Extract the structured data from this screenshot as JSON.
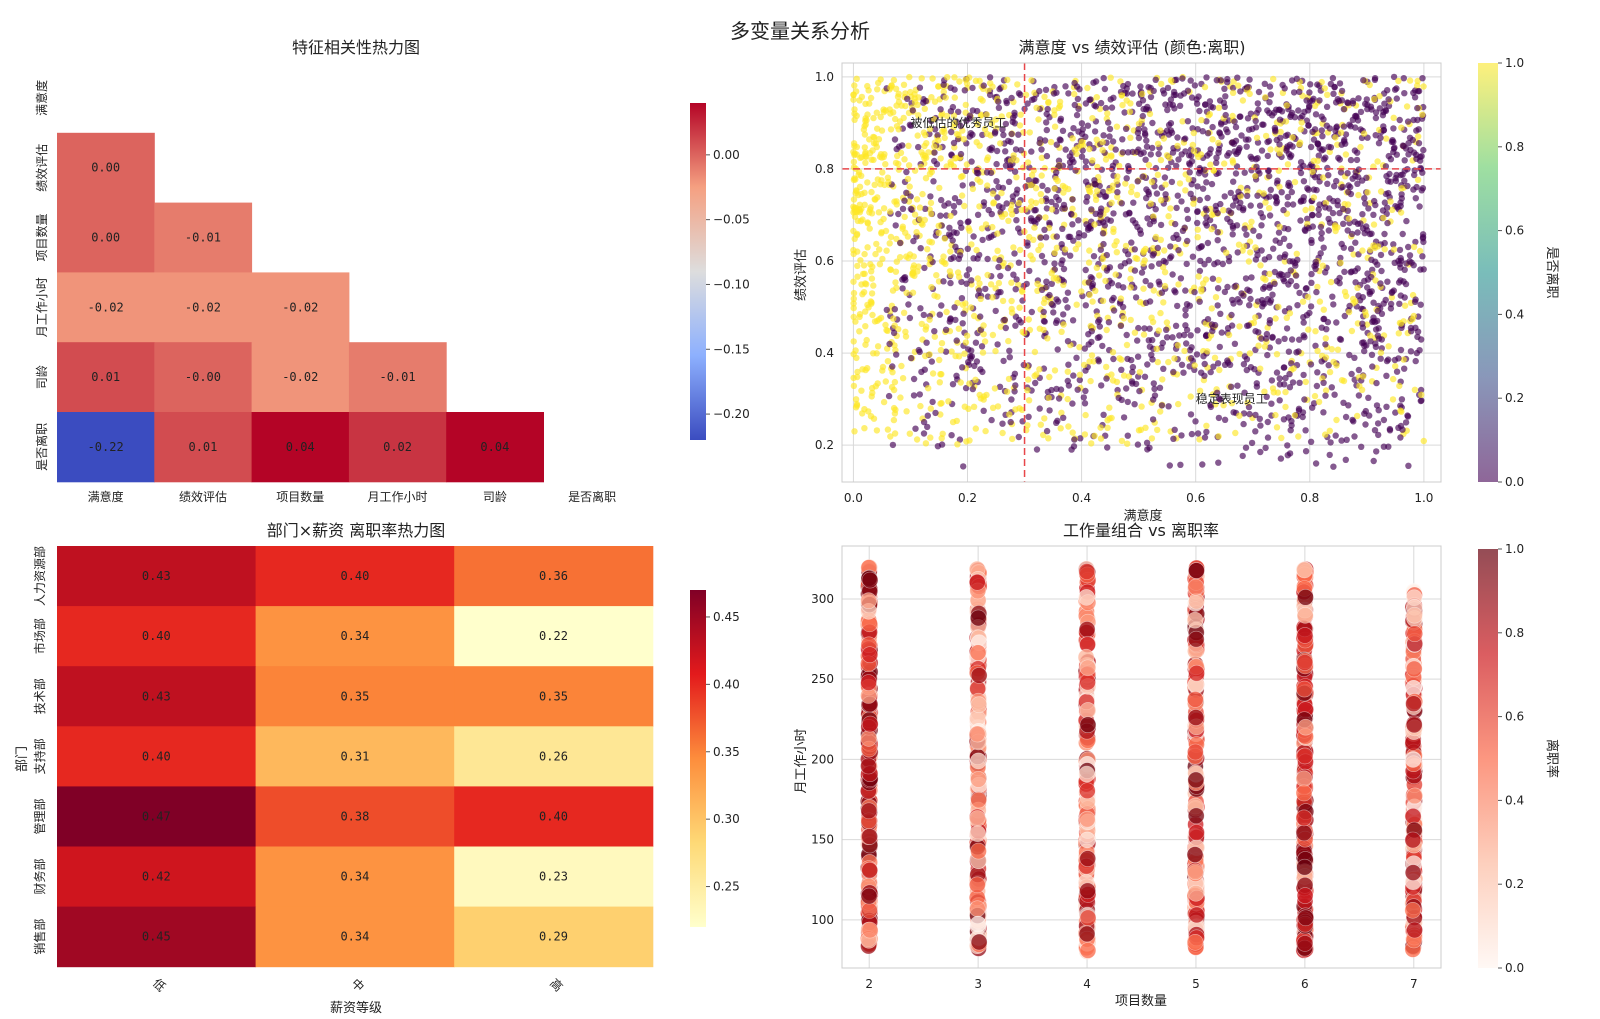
{
  "figure": {
    "suptitle": "多变量关系分析"
  },
  "chart_data": [
    {
      "type": "heatmap",
      "title": "特征相关性热力图",
      "labels": [
        "满意度",
        "绩效评估",
        "项目数量",
        "月工作小时",
        "司龄",
        "是否离职"
      ],
      "matrix": [
        [
          null,
          null,
          null,
          null,
          null,
          null
        ],
        [
          0.0,
          null,
          null,
          null,
          null,
          null
        ],
        [
          0.0,
          -0.01,
          null,
          null,
          null,
          null
        ],
        [
          -0.02,
          -0.02,
          -0.02,
          null,
          null,
          null
        ],
        [
          0.01,
          -0.0,
          -0.02,
          -0.01,
          null,
          null
        ],
        [
          -0.22,
          0.01,
          0.04,
          0.02,
          0.04,
          null
        ]
      ],
      "cell_labels": [
        [
          null,
          null,
          null,
          null,
          null,
          null
        ],
        [
          "0.00",
          null,
          null,
          null,
          null,
          null
        ],
        [
          "0.00",
          "-0.01",
          null,
          null,
          null,
          null
        ],
        [
          "-0.02",
          "-0.02",
          "-0.02",
          null,
          null,
          null
        ],
        [
          "0.01",
          "-0.00",
          "-0.02",
          "-0.01",
          null,
          null
        ],
        [
          "-0.22",
          "0.01",
          "0.04",
          "0.02",
          "0.04",
          null
        ]
      ],
      "colormap": "coolwarm",
      "vmin": -0.22,
      "vmax": 0.04,
      "colorbar_ticks": [
        0.0,
        -0.05,
        -0.1,
        -0.15,
        -0.2
      ],
      "colorbar_tick_labels": [
        "0.00",
        "−0.05",
        "−0.10",
        "−0.15",
        "−0.20"
      ]
    },
    {
      "type": "scatter",
      "title": "满意度 vs 绩效评估 (颜色:离职)",
      "xlabel": "满意度",
      "ylabel": "绩效评估",
      "xlim": [
        -0.02,
        1.03
      ],
      "ylim": [
        0.12,
        1.03
      ],
      "xticks": [
        0.0,
        0.2,
        0.4,
        0.6,
        0.8,
        1.0
      ],
      "xtick_labels": [
        "0.0",
        "0.2",
        "0.4",
        "0.6",
        "0.8",
        "1.0"
      ],
      "yticks": [
        0.2,
        0.4,
        0.6,
        0.8,
        1.0
      ],
      "ytick_labels": [
        "0.2",
        "0.4",
        "0.6",
        "0.8",
        "1.0"
      ],
      "grid": true,
      "colormap": "viridis",
      "color_meaning": "是否离职 (0 = 留任, 1 = 离职)",
      "colorbar_label": "是否离职",
      "colorbar_ticks": [
        0.0,
        0.2,
        0.4,
        0.6,
        0.8,
        1.0
      ],
      "colorbar_tick_labels": [
        "0.0",
        "0.2",
        "0.4",
        "0.6",
        "0.8",
        "1.0"
      ],
      "reference_lines": [
        {
          "orientation": "vertical",
          "value": 0.3,
          "color": "#e8464a"
        },
        {
          "orientation": "horizontal",
          "value": 0.8,
          "color": "#e8464a"
        }
      ],
      "annotations": [
        {
          "text": "被低估的优秀员工",
          "x": 0.1,
          "y": 0.9,
          "color": "#ff0000"
        },
        {
          "text": "稳定表现员工",
          "x": 0.6,
          "y": 0.3,
          "color": "#008000"
        }
      ],
      "distribution": {
        "stayed": {
          "x_range": [
            0.05,
            1.0
          ],
          "y_range": [
            0.15,
            1.0
          ],
          "n": 2000
        },
        "left": {
          "x_range": [
            0.0,
            1.0
          ],
          "y_range": [
            0.2,
            1.0
          ],
          "n": 1400
        }
      }
    },
    {
      "type": "heatmap",
      "title": "部门×薪资 离职率热力图",
      "xlabel": "薪资等级",
      "ylabel": "部门",
      "x_categories": [
        "低",
        "中",
        "高"
      ],
      "y_categories": [
        "人力资源部",
        "市场部",
        "技术部",
        "支持部",
        "管理部",
        "财务部",
        "销售部"
      ],
      "values": [
        [
          0.43,
          0.4,
          0.36
        ],
        [
          0.4,
          0.34,
          0.22
        ],
        [
          0.43,
          0.35,
          0.35
        ],
        [
          0.4,
          0.31,
          0.26
        ],
        [
          0.47,
          0.38,
          0.4
        ],
        [
          0.42,
          0.34,
          0.23
        ],
        [
          0.45,
          0.34,
          0.29
        ]
      ],
      "cell_labels": [
        [
          "0.43",
          "0.40",
          "0.36"
        ],
        [
          "0.40",
          "0.34",
          "0.22"
        ],
        [
          "0.43",
          "0.35",
          "0.35"
        ],
        [
          "0.40",
          "0.31",
          "0.26"
        ],
        [
          "0.47",
          "0.38",
          "0.40"
        ],
        [
          "0.42",
          "0.34",
          "0.23"
        ],
        [
          "0.45",
          "0.34",
          "0.29"
        ]
      ],
      "colormap": "YlOrRd",
      "vmin": 0.22,
      "vmax": 0.47,
      "colorbar_ticks": [
        0.25,
        0.3,
        0.35,
        0.4,
        0.45
      ],
      "colorbar_tick_labels": [
        "0.25",
        "0.30",
        "0.35",
        "0.40",
        "0.45"
      ]
    },
    {
      "type": "scatter",
      "title": "工作量组合 vs 离职率",
      "xlabel": "项目数量",
      "ylabel": "月工作小时",
      "xlim": [
        1.75,
        7.25
      ],
      "ylim": [
        70,
        333
      ],
      "xticks": [
        2,
        3,
        4,
        5,
        6,
        7
      ],
      "xtick_labels": [
        "2",
        "3",
        "4",
        "5",
        "6",
        "7"
      ],
      "yticks": [
        100,
        150,
        200,
        250,
        300
      ],
      "ytick_labels": [
        "100",
        "150",
        "200",
        "250",
        "300"
      ],
      "grid": true,
      "colormap": "Reds",
      "colorbar_label": "离职率",
      "colorbar_ticks": [
        0.0,
        0.2,
        0.4,
        0.6,
        0.8,
        1.0
      ],
      "colorbar_tick_labels": [
        "0.0",
        "0.2",
        "0.4",
        "0.6",
        "0.8",
        "1.0"
      ],
      "distribution": {
        "x_values": [
          2,
          3,
          4,
          5,
          6,
          7
        ],
        "y_range": [
          80,
          320
        ],
        "y_max_by_x": [
          320,
          320,
          320,
          320,
          320,
          306
        ]
      }
    }
  ]
}
